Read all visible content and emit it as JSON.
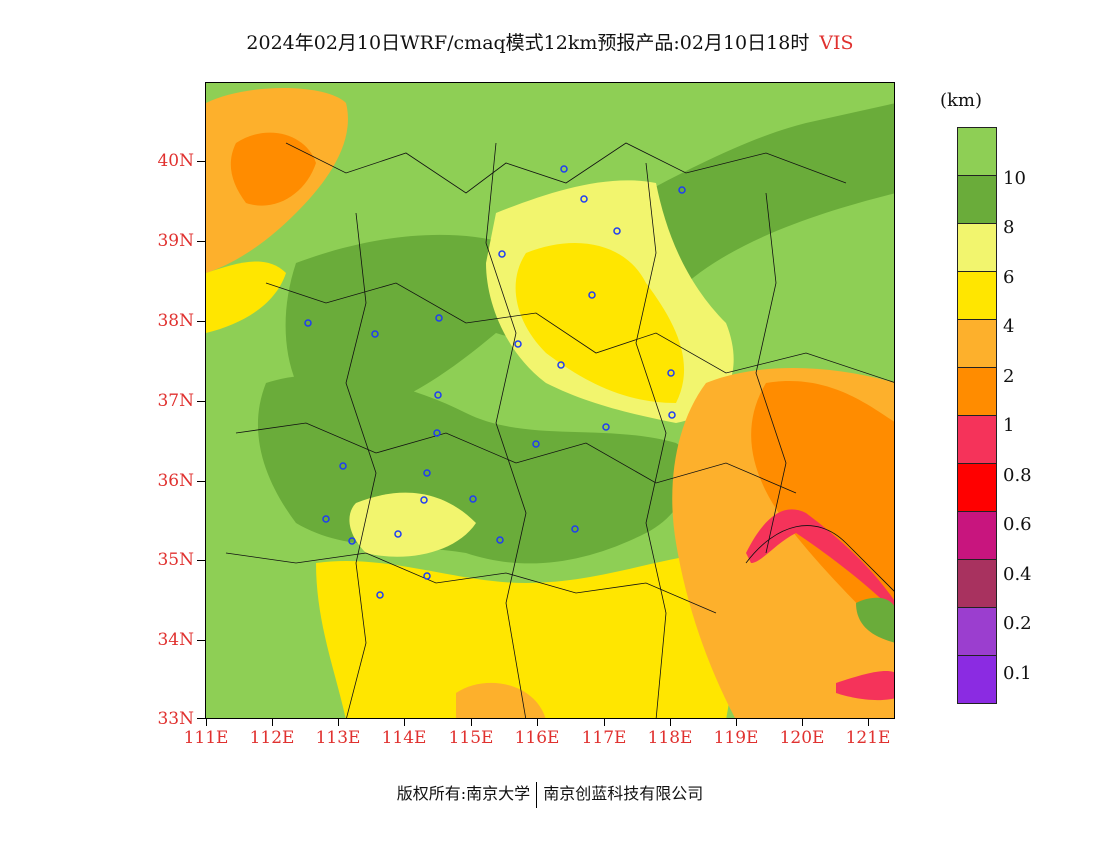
{
  "title": {
    "text": "2024年02月10日WRF/cmaq模式12km预报产品:02月10日18时",
    "variable": "VIS"
  },
  "axes": {
    "lat_labels": [
      "40N",
      "39N",
      "38N",
      "37N",
      "36N",
      "35N",
      "34N",
      "33N"
    ],
    "lon_labels": [
      "111E",
      "112E",
      "113E",
      "114E",
      "115E",
      "116E",
      "117E",
      "118E",
      "119E",
      "120E",
      "121E"
    ]
  },
  "legend": {
    "unit": "(km)",
    "labels": [
      "10",
      "8",
      "6",
      "4",
      "2",
      "1",
      "0.8",
      "0.6",
      "0.4",
      "0.2",
      "0.1"
    ],
    "colors": [
      "#8ecf55",
      "#6aac3a",
      "#f2f56e",
      "#ffe600",
      "#fdb02c",
      "#ff8c00",
      "#f5335a",
      "#ff0000",
      "#c8157e",
      "#a8325f",
      "#9b3ecf",
      "#8b2be2"
    ]
  },
  "footer": {
    "left": "版权所有:南京大学",
    "right": "南京创蓝科技有限公司"
  }
}
